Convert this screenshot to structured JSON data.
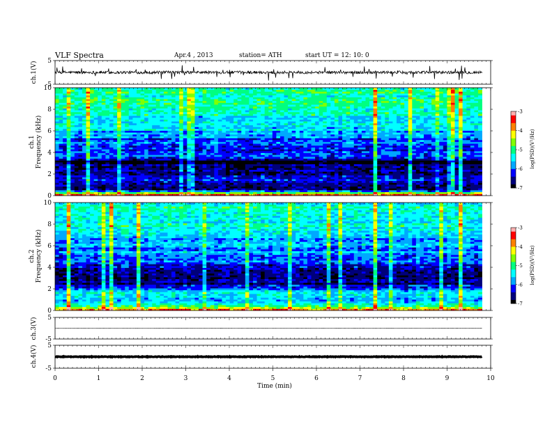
{
  "header": {
    "title": "VLF Spectra",
    "date": "Apr.4  , 2013",
    "station": "station= ATH",
    "start": "start  UT  =    12: 10: 0"
  },
  "colors": {
    "background": "#ffffff",
    "axis": "#000000",
    "colormap": [
      "#000000",
      "#00007a",
      "#0000ff",
      "#00a8ff",
      "#00ffff",
      "#00ff80",
      "#80ff00",
      "#ffff00",
      "#ff8000",
      "#ff0000",
      "#ffb0b0",
      "#ffffff"
    ]
  },
  "chart_data": [
    {
      "type": "line",
      "name": "ch1-waveform",
      "ylabel": "ch.1(V)",
      "ylim": [
        -5,
        5
      ],
      "yticks": [
        "5",
        "-5"
      ],
      "baseline": 0,
      "noise_amplitude_v": 1.2,
      "xlim": [
        0,
        9.8
      ]
    },
    {
      "type": "heatmap",
      "name": "ch1-spectrogram",
      "ylabel": "Frequency (kHz)",
      "channel_label": "ch.1",
      "ylim": [
        0,
        10
      ],
      "yticks": [
        "0",
        "2",
        "4",
        "6",
        "8",
        "10"
      ],
      "xlim": [
        0,
        9.8
      ],
      "band_profile_khz": [
        0.2,
        0.5,
        1.0,
        1.6,
        2.2,
        2.6,
        3.2,
        3.6,
        4.0,
        5.0,
        6.0,
        7.0,
        8.0,
        9.0,
        10.0
      ],
      "band_log_psd": [
        -4.4,
        -6.6,
        -6.6,
        -6.2,
        -6.6,
        -6.6,
        -6.9,
        -6.3,
        -6.0,
        -6.1,
        -5.6,
        -5.4,
        -5.2,
        -5.2,
        -5.2
      ],
      "colorbar": {
        "label": "log(PSD)(V²/Hz)",
        "range": [
          -7,
          -3
        ],
        "ticks": [
          "-3",
          "-4",
          "-5",
          "-6",
          "-7"
        ]
      }
    },
    {
      "type": "heatmap",
      "name": "ch2-spectrogram",
      "ylabel": "Frequency (kHz)",
      "channel_label": "ch.2",
      "ylim": [
        0,
        10
      ],
      "yticks": [
        "0",
        "2",
        "4",
        "6",
        "8",
        "10"
      ],
      "xlim": [
        0,
        9.8
      ],
      "band_profile_khz": [
        0.2,
        0.5,
        1.0,
        1.6,
        2.2,
        2.6,
        3.2,
        3.6,
        4.0,
        5.0,
        6.0,
        7.0,
        8.0,
        9.0,
        10.0
      ],
      "band_log_psd": [
        -4.3,
        -5.2,
        -6.0,
        -5.4,
        -6.2,
        -6.7,
        -6.4,
        -6.5,
        -6.3,
        -5.8,
        -5.8,
        -5.6,
        -5.3,
        -5.4,
        -5.3
      ],
      "colorbar": {
        "label": "log(PSD)(V²/Hz)",
        "range": [
          -7,
          -3
        ],
        "ticks": [
          "-3",
          "-4",
          "-5",
          "-6",
          "-7"
        ]
      }
    },
    {
      "type": "line",
      "name": "ch3-waveform",
      "ylabel": "ch.3(V)",
      "ylim": [
        -5,
        5
      ],
      "yticks": [
        "5",
        "-5"
      ],
      "baseline": 0,
      "noise_amplitude_v": 0.05,
      "xlim": [
        0,
        9.8
      ]
    },
    {
      "type": "line",
      "name": "ch4-waveform",
      "ylabel": "ch.4(V)",
      "ylim": [
        -5,
        5
      ],
      "yticks": [
        "5",
        "-5"
      ],
      "baseline": 0,
      "noise_amplitude_v": 0.25,
      "xlim": [
        0,
        9.8
      ],
      "xlabel": "Time  (min)",
      "xticks": [
        "0",
        "1",
        "2",
        "3",
        "4",
        "5",
        "6",
        "7",
        "8",
        "9",
        "10"
      ],
      "xrange": [
        0,
        10
      ]
    }
  ]
}
